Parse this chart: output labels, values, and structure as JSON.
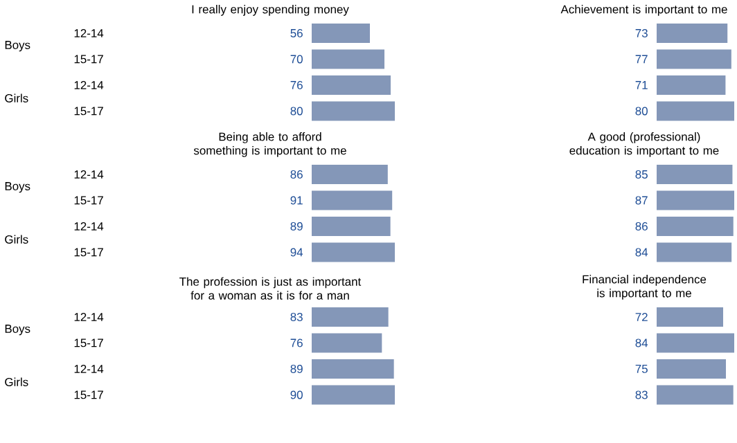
{
  "chart_data": [
    {
      "type": "bar",
      "orientation": "horizontal",
      "title": "I really enjoy spending money",
      "categories": [
        "12-14",
        "15-17",
        "12-14",
        "15-17"
      ],
      "values": [
        56,
        70,
        76,
        80
      ],
      "color": "#8497b8",
      "data_labels": true,
      "annotations": [
        "Boys",
        "Girls"
      ]
    },
    {
      "type": "bar",
      "orientation": "horizontal",
      "title": "Achievement is important to me",
      "categories": [
        null,
        null,
        null,
        null
      ],
      "values": [
        73,
        77,
        71,
        80
      ],
      "color": "#8497b8",
      "data_labels": true
    },
    {
      "type": "bar",
      "orientation": "horizontal",
      "title": "Being able to afford something is important to me",
      "categories": [
        "12-14",
        "15-17",
        "12-14",
        "15-17"
      ],
      "values": [
        86,
        91,
        89,
        94
      ],
      "color": "#8497b8",
      "data_labels": true,
      "annotations": [
        "Boys",
        "Girls"
      ]
    },
    {
      "type": "bar",
      "orientation": "horizontal",
      "title": "A good (professional) education is important to me",
      "categories": [
        null,
        null,
        null,
        null
      ],
      "values": [
        85,
        87,
        86,
        84
      ],
      "color": "#8497b8",
      "data_labels": true
    },
    {
      "type": "bar",
      "orientation": "horizontal",
      "title": "The profession is just as important for a woman as it is for a man",
      "categories": [
        "12-14",
        "15-17",
        "12-14",
        "15-17"
      ],
      "values": [
        83,
        76,
        89,
        90
      ],
      "color": "#8497b8",
      "data_labels": true,
      "annotations": [
        "Boys",
        "Girls"
      ]
    },
    {
      "type": "bar",
      "orientation": "horizontal",
      "title": "Financial independence is important to me",
      "categories": [
        null,
        null,
        null,
        null
      ],
      "values": [
        72,
        84,
        75,
        83
      ],
      "color": "#8497b8",
      "data_labels": true
    }
  ]
}
